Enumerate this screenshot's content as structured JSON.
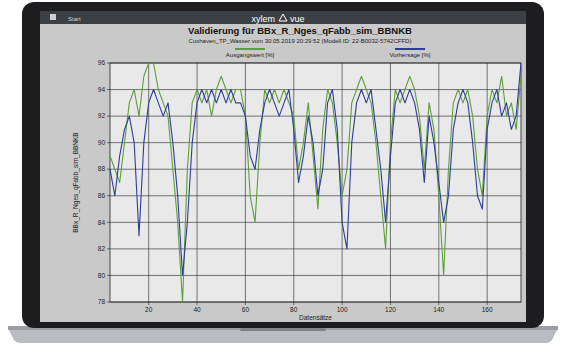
{
  "header": {
    "menu": "Start",
    "logo": "xylem",
    "logo_suffix": "vue"
  },
  "chart_data": {
    "type": "line",
    "title": "Validierung für BBx_R_Nges_qFabb_sim_BBNKB",
    "subtitle": "Cuxhaven_TP_Wasser vom 30.05.2019 20:29:52 (Modell ID: 22-B0032-5742CFFD)",
    "x_label": "Datensätze",
    "y_label": "BBx_R_Nges_qFabb_sim_BBNKB",
    "x": [
      4,
      6,
      8,
      10,
      12,
      14,
      16,
      18,
      20,
      22,
      24,
      26,
      28,
      30,
      32,
      34,
      36,
      38,
      40,
      42,
      44,
      46,
      48,
      50,
      52,
      54,
      56,
      58,
      60,
      62,
      64,
      66,
      68,
      70,
      72,
      74,
      76,
      78,
      80,
      82,
      84,
      86,
      88,
      90,
      92,
      94,
      96,
      98,
      100,
      102,
      104,
      106,
      108,
      110,
      112,
      114,
      116,
      118,
      120,
      122,
      124,
      126,
      128,
      130,
      132,
      134,
      136,
      138,
      140,
      142,
      144,
      146,
      148,
      150,
      152,
      154,
      156,
      158,
      160,
      162,
      164,
      166,
      168,
      170,
      172,
      174
    ],
    "series": [
      {
        "name": "Ausgangswert [%]",
        "color": "#5f9e3c",
        "values": [
          89,
          88,
          87,
          90,
          93,
          94,
          92,
          95,
          96,
          96,
          94,
          93,
          92,
          88,
          84,
          78,
          88,
          93,
          94,
          93,
          94,
          92,
          94,
          95,
          94,
          93,
          94,
          94,
          92,
          86,
          84,
          90,
          94,
          93,
          94,
          93,
          94,
          93,
          92,
          88,
          90,
          93,
          89,
          85,
          91,
          94,
          93,
          90,
          86,
          88,
          93,
          94,
          95,
          94,
          93,
          90,
          86,
          82,
          90,
          94,
          93,
          94,
          95,
          94,
          92,
          88,
          93,
          91,
          86,
          80,
          88,
          93,
          94,
          93,
          94,
          92,
          88,
          86,
          92,
          94,
          93,
          95,
          92,
          93,
          91,
          95
        ]
      },
      {
        "name": "Vorhersage [%]",
        "color": "#2e3d9a",
        "values": [
          88,
          86,
          89,
          91,
          92,
          90,
          83,
          90,
          93,
          94,
          93,
          92,
          93,
          90,
          86,
          80,
          84,
          90,
          93,
          94,
          93,
          94,
          93,
          94,
          93,
          94,
          93,
          93,
          92,
          89,
          88,
          91,
          93,
          94,
          93,
          92,
          93,
          94,
          91,
          87,
          89,
          92,
          90,
          86,
          88,
          93,
          94,
          91,
          84,
          82,
          90,
          93,
          94,
          93,
          94,
          91,
          88,
          84,
          89,
          93,
          94,
          93,
          94,
          93,
          91,
          87,
          92,
          90,
          87,
          84,
          86,
          91,
          93,
          94,
          93,
          90,
          86,
          85,
          91,
          93,
          94,
          92,
          93,
          91,
          92,
          96
        ]
      }
    ],
    "xlim": [
      4,
      174
    ],
    "ylim": [
      78,
      96
    ],
    "xticks": [
      20,
      40,
      60,
      80,
      100,
      120,
      140,
      160
    ],
    "yticks": [
      78,
      80,
      82,
      84,
      86,
      88,
      90,
      92,
      94,
      96
    ],
    "grid": true,
    "legend": "top"
  }
}
